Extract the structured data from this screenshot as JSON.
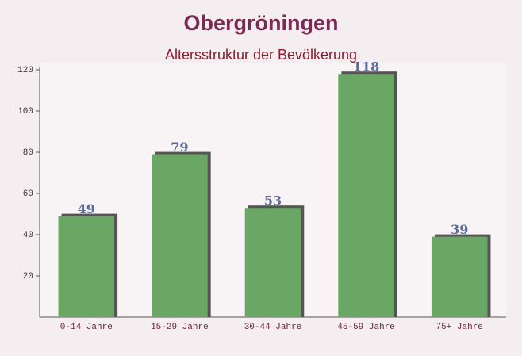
{
  "chart_data": {
    "type": "bar",
    "title": "Obergröningen",
    "subtitle": "Altersstruktur der Bevölkerung",
    "categories": [
      "0-14 Jahre",
      "15-29 Jahre",
      "30-44 Jahre",
      "45-59 Jahre",
      "75+ Jahre"
    ],
    "values": [
      49,
      79,
      53,
      118,
      39
    ],
    "color": "#6aa765",
    "ylim": [
      0,
      120
    ],
    "yticks": [
      20,
      40,
      60,
      80,
      100,
      120
    ],
    "grid": false
  }
}
